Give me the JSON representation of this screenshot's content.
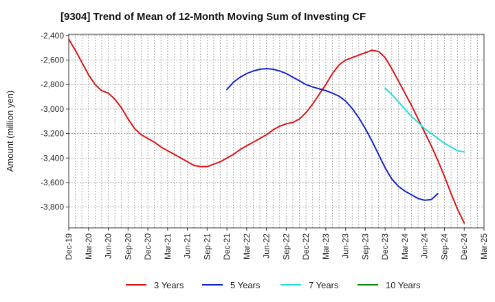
{
  "chart_data": {
    "type": "line",
    "title": "[9304]  Trend of Mean of 12-Month Moving Sum of Investing CF",
    "xlabel": "",
    "ylabel": "Amount (million yen)",
    "ylim": [
      -3970,
      -2390
    ],
    "yticks": [
      -2400,
      -2600,
      -2800,
      -3000,
      -3200,
      -3400,
      -3600,
      -3800
    ],
    "ytick_labels": [
      "-2,400",
      "-2,600",
      "-2,800",
      "-3,000",
      "-3,200",
      "-3,400",
      "-3,600",
      "-3,800"
    ],
    "x_range_months": [
      0,
      63
    ],
    "xticks": [
      {
        "label": "Dec-19",
        "month": 0
      },
      {
        "label": "Mar-20",
        "month": 3
      },
      {
        "label": "Jun-20",
        "month": 6
      },
      {
        "label": "Sep-20",
        "month": 9
      },
      {
        "label": "Dec-20",
        "month": 12
      },
      {
        "label": "Mar-21",
        "month": 15
      },
      {
        "label": "Jun-21",
        "month": 18
      },
      {
        "label": "Sep-21",
        "month": 21
      },
      {
        "label": "Dec-21",
        "month": 24
      },
      {
        "label": "Mar-22",
        "month": 27
      },
      {
        "label": "Jun-22",
        "month": 30
      },
      {
        "label": "Sep-22",
        "month": 33
      },
      {
        "label": "Dec-22",
        "month": 36
      },
      {
        "label": "Mar-23",
        "month": 39
      },
      {
        "label": "Jun-23",
        "month": 42
      },
      {
        "label": "Sep-23",
        "month": 45
      },
      {
        "label": "Dec-23",
        "month": 48
      },
      {
        "label": "Mar-24",
        "month": 51
      },
      {
        "label": "Jun-24",
        "month": 54
      },
      {
        "label": "Sep-24",
        "month": 57
      },
      {
        "label": "Dec-24",
        "month": 60
      },
      {
        "label": "Mar-25",
        "month": 63
      }
    ],
    "series": [
      {
        "name": "3 Years",
        "color": "#dd1111",
        "start_month": 0,
        "values": [
          -2430,
          -2520,
          -2620,
          -2720,
          -2800,
          -2850,
          -2870,
          -2920,
          -2990,
          -3080,
          -3160,
          -3210,
          -3240,
          -3270,
          -3310,
          -3340,
          -3370,
          -3400,
          -3430,
          -3460,
          -3470,
          -3470,
          -3450,
          -3430,
          -3400,
          -3370,
          -3330,
          -3300,
          -3270,
          -3240,
          -3210,
          -3170,
          -3140,
          -3120,
          -3110,
          -3080,
          -3030,
          -2960,
          -2880,
          -2800,
          -2710,
          -2640,
          -2600,
          -2580,
          -2560,
          -2540,
          -2520,
          -2530,
          -2580,
          -2670,
          -2770,
          -2870,
          -2970,
          -3080,
          -3190,
          -3300,
          -3420,
          -3550,
          -3690,
          -3820,
          -3930
        ]
      },
      {
        "name": "5 Years",
        "color": "#1122cc",
        "start_month": 24,
        "values": [
          -2840,
          -2780,
          -2740,
          -2710,
          -2690,
          -2675,
          -2670,
          -2675,
          -2690,
          -2710,
          -2740,
          -2770,
          -2800,
          -2820,
          -2835,
          -2850,
          -2870,
          -2895,
          -2935,
          -2995,
          -3070,
          -3160,
          -3260,
          -3370,
          -3480,
          -3570,
          -3630,
          -3670,
          -3700,
          -3730,
          -3745,
          -3740,
          -3690
        ]
      },
      {
        "name": "7 Years",
        "color": "#22dddd",
        "start_month": 48,
        "values": [
          -2830,
          -2880,
          -2940,
          -3000,
          -3060,
          -3110,
          -3160,
          -3200,
          -3240,
          -3280,
          -3310,
          -3340,
          -3350
        ]
      },
      {
        "name": "10 Years",
        "color": "#118811",
        "start_month": 60,
        "values": []
      }
    ],
    "grid": true,
    "legend_position": "bottom"
  }
}
